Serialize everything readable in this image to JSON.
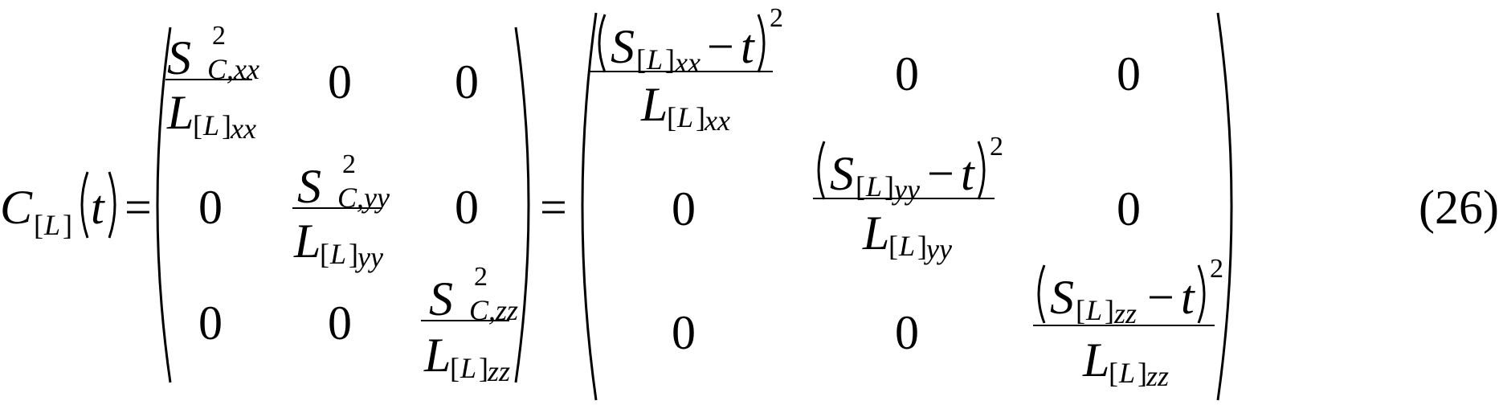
{
  "equation": {
    "lhs": {
      "symbol": "C",
      "sub_letter": "L",
      "arg": "t"
    },
    "operators": {
      "equals": "="
    },
    "matrix1": {
      "entries": [
        {
          "num_base": "S",
          "num_sup": "2",
          "num_sub": "C,xx",
          "den_base": "L",
          "den_sub_letter": "L",
          "den_sub_idx": "xx"
        },
        {
          "num_base": "S",
          "num_sup": "2",
          "num_sub": "C,yy",
          "den_base": "L",
          "den_sub_letter": "L",
          "den_sub_idx": "yy"
        },
        {
          "num_base": "S",
          "num_sup": "2",
          "num_sub": "C,zz",
          "den_base": "L",
          "den_sub_letter": "L",
          "den_sub_idx": "zz"
        }
      ],
      "zero": "0"
    },
    "matrix2": {
      "entries": [
        {
          "s": "S",
          "s_letter": "L",
          "s_idx": "xx",
          "minus": "−",
          "t": "t",
          "pow": "2",
          "den_base": "L",
          "den_letter": "L",
          "den_idx": "xx"
        },
        {
          "s": "S",
          "s_letter": "L",
          "s_idx": "yy",
          "minus": "−",
          "t": "t",
          "pow": "2",
          "den_base": "L",
          "den_letter": "L",
          "den_idx": "yy"
        },
        {
          "s": "S",
          "s_letter": "L",
          "s_idx": "zz",
          "minus": "−",
          "t": "t",
          "pow": "2",
          "den_base": "L",
          "den_letter": "L",
          "den_idx": "zz"
        }
      ],
      "zero": "0"
    },
    "number": "(26)"
  }
}
